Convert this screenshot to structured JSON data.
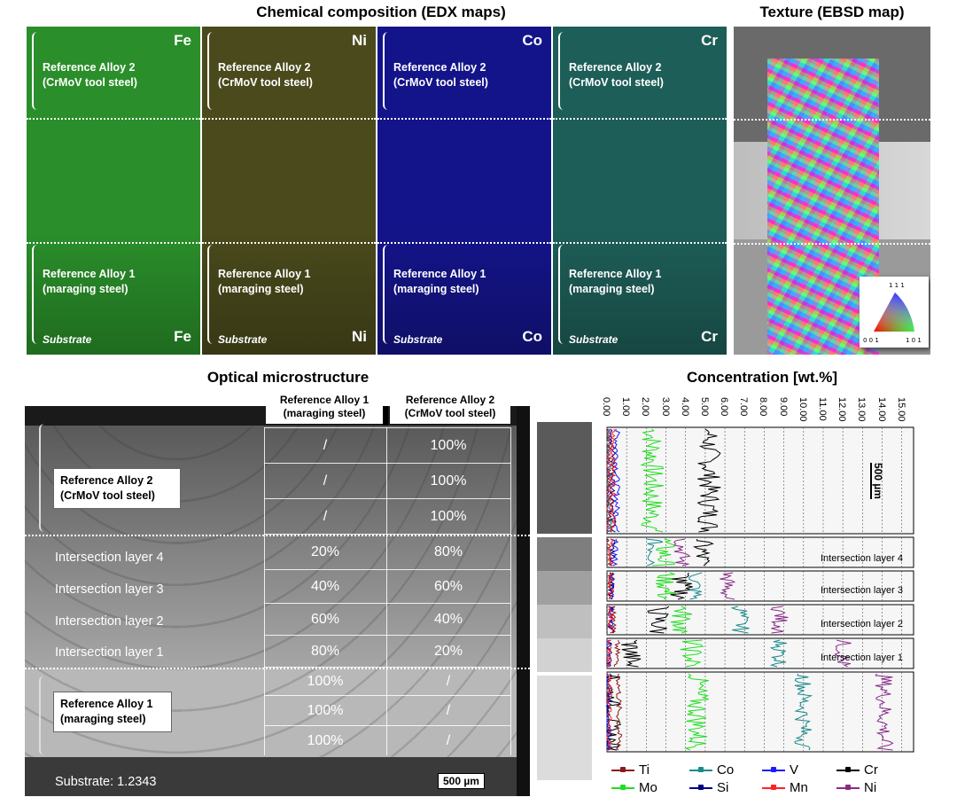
{
  "titles": {
    "edx": "Chemical composition (EDX maps)",
    "ebsd": "Texture (EBSD map)",
    "optical": "Optical microstructure",
    "concentration": "Concentration [wt.%]"
  },
  "edx_maps": [
    {
      "element": "Fe",
      "color": "#2a8f2a",
      "label_top": [
        "Reference Alloy 2",
        "(CrMoV tool steel)"
      ],
      "label_bottom": [
        "Reference Alloy  1",
        "(maraging steel)"
      ],
      "substrate": "Substrate"
    },
    {
      "element": "Ni",
      "color": "#4a4a1c",
      "label_top": [
        "Reference Alloy 2",
        "(CrMoV tool steel)"
      ],
      "label_bottom": [
        "Reference Alloy  1",
        "(maraging steel)"
      ],
      "substrate": "Substrate"
    },
    {
      "element": "Co",
      "color": "#14148a",
      "label_top": [
        "Reference Alloy 2",
        "(CrMoV tool steel)"
      ],
      "label_bottom": [
        "Reference Alloy  1",
        "(maraging steel)"
      ],
      "substrate": "Substrate"
    },
    {
      "element": "Cr",
      "color": "#1e5e58",
      "label_top": [
        "Reference Alloy 2",
        "(CrMoV tool steel)"
      ],
      "label_bottom": [
        "Reference Alloy  1",
        "(maraging steel)"
      ],
      "substrate": "Substrate"
    }
  ],
  "ebsd": {
    "legend_labels": {
      "top": "1 1 1",
      "bottom_left": "0 0 1",
      "bottom_right": "1 0 1"
    }
  },
  "optical": {
    "col_headers": [
      [
        "Reference Alloy 1",
        "(maraging steel)"
      ],
      [
        "Reference Alloy 2",
        "(CrMoV tool steel)"
      ]
    ],
    "rows": [
      {
        "ra1": "/",
        "ra2": "100%"
      },
      {
        "ra1": "/",
        "ra2": "100%"
      },
      {
        "ra1": "/",
        "ra2": "100%"
      },
      {
        "ra1": "20%",
        "ra2": "80%"
      },
      {
        "ra1": "40%",
        "ra2": "60%"
      },
      {
        "ra1": "60%",
        "ra2": "40%"
      },
      {
        "ra1": "80%",
        "ra2": "20%"
      },
      {
        "ra1": "100%",
        "ra2": "/"
      },
      {
        "ra1": "100%",
        "ra2": "/"
      },
      {
        "ra1": "100%",
        "ra2": "/"
      }
    ],
    "region_labels": {
      "ref2": [
        "Reference Alloy 2",
        "(CrMoV tool steel)"
      ],
      "layers": [
        "Intersection layer 4",
        "Intersection layer 3",
        "Intersection layer 2",
        "Intersection layer 1"
      ],
      "ref1": [
        "Reference Alloy 1",
        "(maraging steel)"
      ],
      "substrate": "Substrate: 1.2343"
    },
    "scale_bar": "500 µm"
  },
  "chart_data": {
    "type": "line",
    "title": "Concentration [wt.%]",
    "x_ticks": [
      "0.00",
      "1.00",
      "2.00",
      "3.00",
      "4.00",
      "5.00",
      "6.00",
      "7.00",
      "8.00",
      "9.00",
      "10.00",
      "11.00",
      "12.00",
      "13.00",
      "14.00",
      "15.00"
    ],
    "xlim": [
      0,
      15
    ],
    "scale_bar": "500 µm",
    "panel_labels": [
      "Intersection layer 4",
      "Intersection layer 3",
      "Intersection layer 2",
      "Intersection layer 1"
    ],
    "legend": [
      {
        "name": "Ti",
        "color": "#8b1a1a"
      },
      {
        "name": "Co",
        "color": "#1a8a8a"
      },
      {
        "name": "V",
        "color": "#1a1aff"
      },
      {
        "name": "Cr",
        "color": "#000000"
      },
      {
        "name": "Mo",
        "color": "#22dd22"
      },
      {
        "name": "Si",
        "color": "#000080"
      },
      {
        "name": "Mn",
        "color": "#ff2222"
      },
      {
        "name": "Ni",
        "color": "#8b2a8b"
      }
    ],
    "series_levels": {
      "ref2": {
        "Mo": 2.3,
        "Cr": 5.2,
        "Co": 0.1,
        "Ni": 0.1,
        "Ti": 0.05,
        "V": 0.5,
        "Si": 0.3,
        "Mn": 0.3
      },
      "layer4": {
        "Mo": 2.9,
        "Cr": 4.8,
        "Co": 2.4,
        "Ni": 3.8,
        "Ti": 0.1,
        "V": 0.4,
        "Si": 0.3,
        "Mn": 0.2
      },
      "layer3": {
        "Mo": 3.0,
        "Cr": 3.8,
        "Co": 4.5,
        "Ni": 6.1,
        "Ti": 0.2,
        "V": 0.3,
        "Si": 0.2,
        "Mn": 0.2
      },
      "layer2": {
        "Mo": 3.8,
        "Cr": 2.6,
        "Co": 6.8,
        "Ni": 8.8,
        "Ti": 0.3,
        "V": 0.2,
        "Si": 0.2,
        "Mn": 0.2
      },
      "layer1": {
        "Mo": 4.3,
        "Cr": 1.2,
        "Co": 8.8,
        "Ni": 12.0,
        "Ti": 0.5,
        "V": 0.1,
        "Si": 0.1,
        "Mn": 0.1
      },
      "ref1": {
        "Mo": 4.6,
        "Cr": 0.1,
        "Co": 10.0,
        "Ni": 14.1,
        "Ti": 0.6,
        "V": 0.05,
        "Si": 0.1,
        "Mn": 0.1
      }
    }
  }
}
